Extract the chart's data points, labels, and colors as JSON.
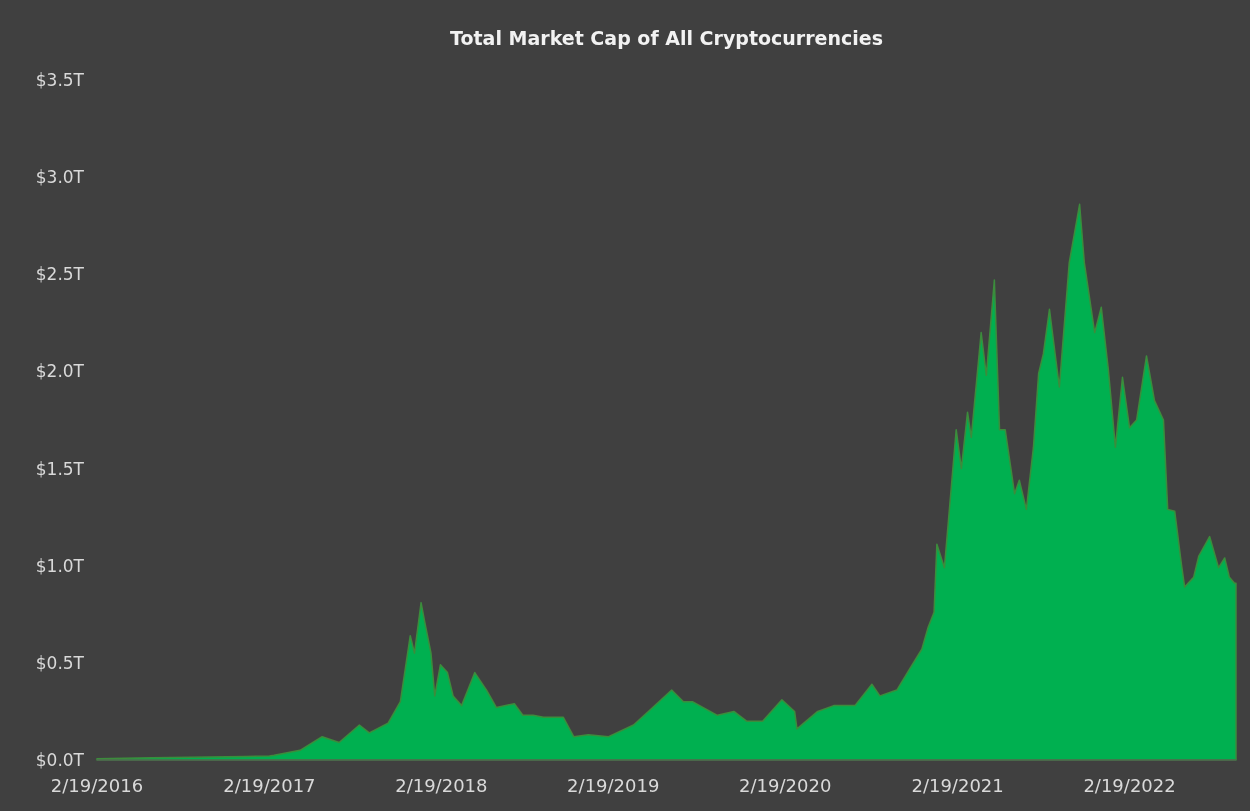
{
  "chart_data": {
    "type": "area",
    "title": "Total Market Cap of All Cryptocurrencies",
    "x": [
      "2016-02-19",
      "2016-06-15",
      "2016-12-31",
      "2017-02-19",
      "2017-03-01",
      "2017-04-25",
      "2017-06-11",
      "2017-07-17",
      "2017-08-29",
      "2017-09-19",
      "2017-10-29",
      "2017-11-24",
      "2017-12-15",
      "2017-12-24",
      "2018-01-07",
      "2018-01-14",
      "2018-01-28",
      "2018-02-05",
      "2018-02-17",
      "2018-03-04",
      "2018-03-16",
      "2018-04-03",
      "2018-05-01",
      "2018-05-26",
      "2018-06-16",
      "2018-07-24",
      "2018-08-11",
      "2018-09-02",
      "2018-09-24",
      "2018-11-05",
      "2018-11-27",
      "2018-12-28",
      "2019-02-09",
      "2019-04-03",
      "2019-05-09",
      "2019-06-23",
      "2019-07-18",
      "2019-08-06",
      "2019-09-28",
      "2019-11-02",
      "2019-11-29",
      "2020-01-02",
      "2020-02-12",
      "2020-03-10",
      "2020-03-15",
      "2020-04-28",
      "2020-06-01",
      "2020-07-16",
      "2020-08-21",
      "2020-09-07",
      "2020-10-13",
      "2020-11-07",
      "2020-12-05",
      "2020-12-18",
      "2020-12-31",
      "2021-01-06",
      "2021-01-22",
      "2021-02-16",
      "2021-02-27",
      "2021-03-12",
      "2021-03-20",
      "2021-04-10",
      "2021-04-21",
      "2021-05-08",
      "2021-05-19",
      "2021-05-31",
      "2021-06-20",
      "2021-06-30",
      "2021-07-15",
      "2021-07-30",
      "2021-08-10",
      "2021-08-20",
      "2021-09-02",
      "2021-09-23",
      "2021-10-14",
      "2021-11-05",
      "2021-11-15",
      "2021-12-07",
      "2021-12-21",
      "2022-01-05",
      "2022-01-20",
      "2022-02-04",
      "2022-02-19",
      "2022-03-06",
      "2022-03-27",
      "2022-04-13",
      "2022-05-02",
      "2022-05-11",
      "2022-05-26",
      "2022-06-09",
      "2022-06-16",
      "2022-07-05",
      "2022-07-16",
      "2022-08-08",
      "2022-08-27",
      "2022-09-09",
      "2022-09-19",
      "2022-09-30",
      "2022-10-03"
    ],
    "series": [
      {
        "color": "#00b050",
        "values": [
          0.007,
          0.012,
          0.018,
          0.02,
          0.024,
          0.05,
          0.12,
          0.09,
          0.18,
          0.14,
          0.19,
          0.3,
          0.64,
          0.55,
          0.81,
          0.72,
          0.55,
          0.33,
          0.49,
          0.45,
          0.33,
          0.28,
          0.45,
          0.36,
          0.27,
          0.29,
          0.23,
          0.23,
          0.22,
          0.22,
          0.12,
          0.13,
          0.12,
          0.18,
          0.26,
          0.36,
          0.3,
          0.3,
          0.23,
          0.25,
          0.2,
          0.2,
          0.31,
          0.25,
          0.16,
          0.25,
          0.28,
          0.28,
          0.39,
          0.33,
          0.36,
          0.46,
          0.57,
          0.68,
          0.76,
          1.11,
          0.99,
          1.7,
          1.5,
          1.79,
          1.66,
          2.2,
          1.98,
          2.47,
          1.7,
          1.7,
          1.37,
          1.44,
          1.29,
          1.61,
          1.99,
          2.09,
          2.32,
          1.92,
          2.56,
          2.86,
          2.56,
          2.2,
          2.33,
          2.01,
          1.61,
          1.97,
          1.71,
          1.75,
          2.08,
          1.85,
          1.75,
          1.29,
          1.28,
          1.01,
          0.89,
          0.94,
          1.05,
          1.15,
          0.99,
          1.04,
          0.94,
          0.91,
          0.91
        ]
      }
    ],
    "xlim": [
      "2016-02-19",
      "2022-10-03"
    ],
    "xticks": [
      {
        "value": "2016-02-19",
        "label": "2/19/2016"
      },
      {
        "value": "2017-02-19",
        "label": "2/19/2017"
      },
      {
        "value": "2018-02-19",
        "label": "2/19/2018"
      },
      {
        "value": "2019-02-19",
        "label": "2/19/2019"
      },
      {
        "value": "2020-02-19",
        "label": "2/19/2020"
      },
      {
        "value": "2021-02-19",
        "label": "2/19/2021"
      },
      {
        "value": "2022-02-19",
        "label": "2/19/2022"
      }
    ],
    "ylim": [
      0,
      3.5
    ],
    "yticks": [
      {
        "value": 0,
        "label": "$0.0T"
      },
      {
        "value": 0.5,
        "label": "$0.5T"
      },
      {
        "value": 1,
        "label": "$1.0T"
      },
      {
        "value": 1.5,
        "label": "$1.5T"
      },
      {
        "value": 2,
        "label": "$2.0T"
      },
      {
        "value": 2.5,
        "label": "$2.5T"
      },
      {
        "value": 3,
        "label": "$3.0T"
      },
      {
        "value": 3.5,
        "label": "$3.5T"
      }
    ]
  }
}
